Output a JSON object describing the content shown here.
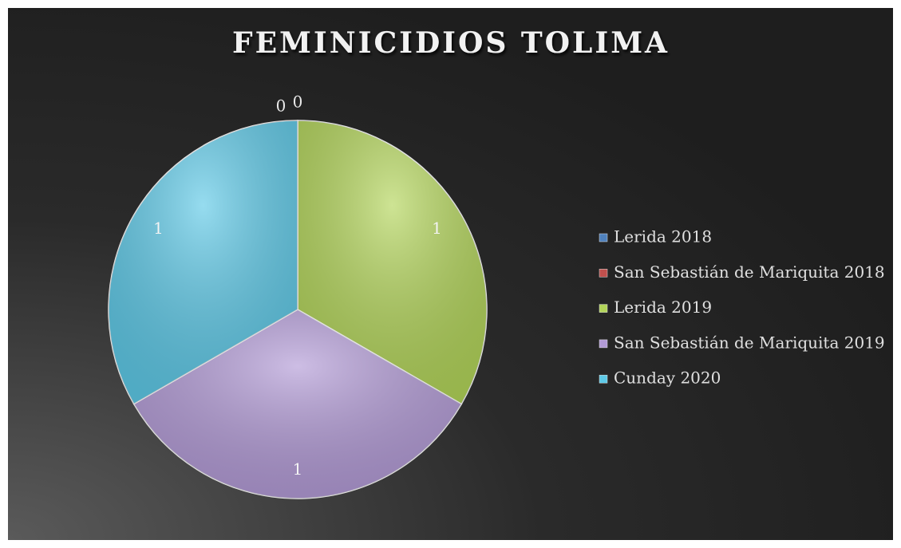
{
  "chart_data": {
    "type": "pie",
    "title": "FEMINICIDIOS TOLIMA",
    "categories": [
      "Lerida 2018",
      "San Sebastián de Mariquita 2018",
      "Lerida 2019",
      "San Sebastián de Mariquita 2019",
      "Cunday 2020"
    ],
    "values": [
      0,
      0,
      1,
      1,
      1
    ],
    "colors": [
      "#4f81bd",
      "#c0504d",
      "#b3d55a",
      "#b29ad6",
      "#5ec9e7"
    ],
    "legend": "right"
  }
}
